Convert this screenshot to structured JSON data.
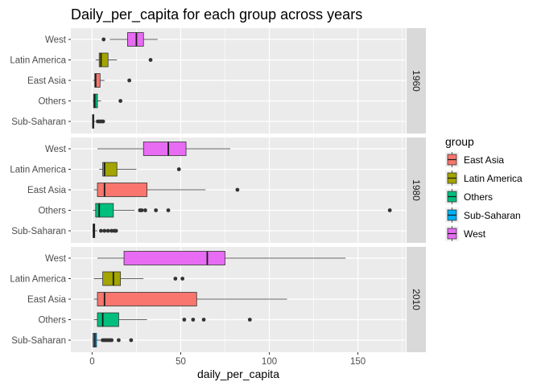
{
  "chart_data": {
    "type": "boxplot",
    "title": "Daily_per_capita for each group across years",
    "xlabel": "daily_per_capita",
    "ylabel": "",
    "xlim": [
      -12,
      177
    ],
    "x_ticks": [
      0,
      50,
      100,
      150
    ],
    "x_tick_labels": [
      "0",
      "50",
      "100",
      "150"
    ],
    "grid": true,
    "legend": {
      "title": "group",
      "position": "right",
      "entries": [
        "East Asia",
        "Latin America",
        "Others",
        "Sub-Saharan",
        "West"
      ]
    },
    "colors": {
      "East Asia": "#f8766d",
      "Latin America": "#a3a500",
      "Others": "#00bf7d",
      "Sub-Saharan": "#00b0f6",
      "West": "#e76bf3"
    },
    "panel_background": "#ebebeb",
    "strip_background": "#d9d9d9",
    "categories": [
      "West",
      "Latin America",
      "East Asia",
      "Others",
      "Sub-Saharan"
    ],
    "panels": [
      {
        "facet": "1960",
        "boxes": [
          {
            "group": "West",
            "min": 10,
            "q1": 20,
            "median": 25,
            "q3": 29,
            "max": 37,
            "outliers": [
              6.5
            ]
          },
          {
            "group": "Latin America",
            "min": 2,
            "q1": 4,
            "median": 5,
            "q3": 9,
            "max": 14,
            "outliers": [
              33
            ]
          },
          {
            "group": "East Asia",
            "min": 0.5,
            "q1": 1.5,
            "median": 2,
            "q3": 4.5,
            "max": 7,
            "outliers": [
              21
            ]
          },
          {
            "group": "Others",
            "min": 0.3,
            "q1": 0.8,
            "median": 1.5,
            "q3": 3,
            "max": 5,
            "outliers": [
              16
            ]
          },
          {
            "group": "Sub-Saharan",
            "min": 0.1,
            "q1": 0.3,
            "median": 0.5,
            "q3": 1,
            "max": 1.8,
            "outliers": [
              3.2,
              4.3,
              5.3,
              6.2
            ]
          }
        ]
      },
      {
        "facet": "1980",
        "boxes": [
          {
            "group": "West",
            "min": 3,
            "q1": 29,
            "median": 43,
            "q3": 53,
            "max": 78,
            "outliers": []
          },
          {
            "group": "Latin America",
            "min": 4,
            "q1": 6,
            "median": 7,
            "q3": 14,
            "max": 25,
            "outliers": [
              49
            ]
          },
          {
            "group": "East Asia",
            "min": 1,
            "q1": 3,
            "median": 7,
            "q3": 31,
            "max": 64,
            "outliers": [
              82
            ]
          },
          {
            "group": "Others",
            "min": 0.5,
            "q1": 2,
            "median": 4,
            "q3": 12,
            "max": 24,
            "outliers": [
              27,
              28,
              30,
              36,
              43,
              168
            ]
          },
          {
            "group": "Sub-Saharan",
            "min": 0.2,
            "q1": 0.5,
            "median": 1,
            "q3": 1.5,
            "max": 3,
            "outliers": [
              5,
              7,
              9,
              11,
              12.5,
              13.5
            ]
          }
        ]
      },
      {
        "facet": "2010",
        "boxes": [
          {
            "group": "West",
            "min": 3,
            "q1": 18,
            "median": 65,
            "q3": 75,
            "max": 143,
            "outliers": []
          },
          {
            "group": "Latin America",
            "min": 1,
            "q1": 6,
            "median": 12,
            "q3": 16,
            "max": 29,
            "outliers": [
              47,
              51
            ]
          },
          {
            "group": "East Asia",
            "min": 1,
            "q1": 3,
            "median": 7,
            "q3": 59,
            "max": 110,
            "outliers": []
          },
          {
            "group": "Others",
            "min": 1,
            "q1": 3,
            "median": 6,
            "q3": 15,
            "max": 31,
            "outliers": [
              52,
              57,
              63,
              89
            ]
          },
          {
            "group": "Sub-Saharan",
            "min": 0.2,
            "q1": 0.5,
            "median": 1.5,
            "q3": 2.5,
            "max": 5,
            "outliers": [
              6,
              7,
              8,
              9,
              10,
              11,
              15,
              22
            ]
          }
        ]
      }
    ]
  }
}
